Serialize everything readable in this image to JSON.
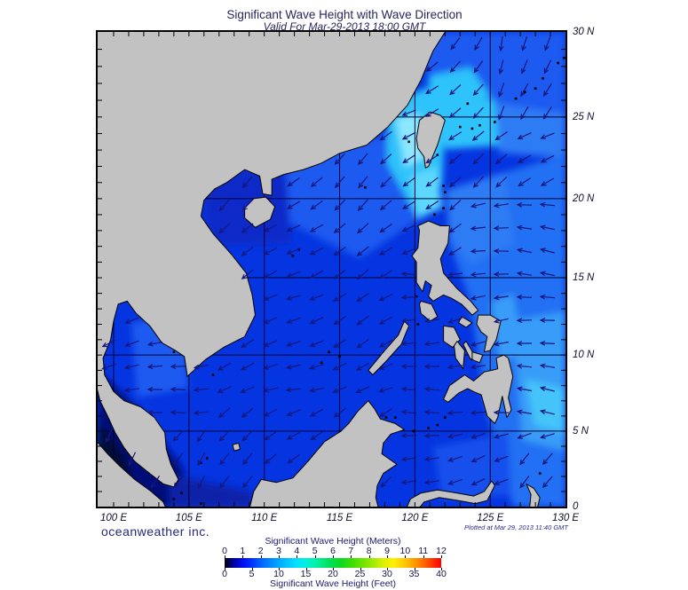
{
  "title": "Significant Wave Height with Wave Direction",
  "subtitle": "Valid For Mar-29-2013 18:00 GMT",
  "branding": "oceanweather inc.",
  "plotted_at": "Plotted at Mar 29, 2013 11:40 GMT",
  "axes": {
    "lon_labels": [
      "100 E",
      "105 E",
      "110 E",
      "115 E",
      "120 E",
      "125 E",
      "130 E"
    ],
    "lon_values": [
      100,
      105,
      110,
      115,
      120,
      125,
      130
    ],
    "lat_labels": [
      "30 N",
      "25 N",
      "20 N",
      "15 N",
      "10 N",
      "5 N",
      "0"
    ],
    "lat_values": [
      30,
      25,
      20,
      15,
      10,
      5,
      0
    ],
    "grid_lon": [
      100,
      105,
      110,
      115,
      120,
      125
    ],
    "grid_lat": [
      5,
      10,
      15,
      20,
      25
    ]
  },
  "legend": {
    "meters_label": "Significant Wave Height (Meters)",
    "feet_label": "Significant Wave Height (Feet)",
    "meters_ticks": [
      "0",
      "1",
      "2",
      "3",
      "4",
      "5",
      "6",
      "7",
      "8",
      "9",
      "10",
      "11",
      "12"
    ],
    "feet_ticks": [
      "0",
      "5",
      "10",
      "15",
      "20",
      "25",
      "30",
      "35",
      "40"
    ],
    "gradient": [
      [
        0,
        "#000000"
      ],
      [
        0.02,
        "#000050"
      ],
      [
        0.05,
        "#0000b8"
      ],
      [
        0.1,
        "#0018ff"
      ],
      [
        0.165,
        "#0060ff"
      ],
      [
        0.25,
        "#00a8ff"
      ],
      [
        0.33,
        "#00e0ff"
      ],
      [
        0.375,
        "#00f0e0"
      ],
      [
        0.42,
        "#00f0a8"
      ],
      [
        0.48,
        "#00e060"
      ],
      [
        0.54,
        "#10d820"
      ],
      [
        0.6,
        "#48e000"
      ],
      [
        0.67,
        "#90e800"
      ],
      [
        0.73,
        "#d8f000"
      ],
      [
        0.78,
        "#fff000"
      ],
      [
        0.84,
        "#ffc000"
      ],
      [
        0.9,
        "#ff8000"
      ],
      [
        0.95,
        "#ff4000"
      ],
      [
        1,
        "#ff0000"
      ]
    ]
  },
  "map": {
    "land_color": "#c2c2c2",
    "coast_color": "#000000",
    "grid_color": "#000030",
    "arrow_color": "#16167d",
    "ocean_palette": {
      "calm_dark": "#000a38",
      "low": "#001178",
      "south_low": "#0a23a8",
      "tonkin": "#0b2cc8",
      "base": "#0535e0",
      "celebes": "#1650ec",
      "moderate": "#1e5af0",
      "pacific": "#2470f3",
      "fresh": "#2e7bf4",
      "bright": "#389df8",
      "pac_cyan": "#45c4fa",
      "high_cyan": "#2fc3fa",
      "vivid_cyan": "#5cd8fd",
      "peak_cyan": "#8ce8ff"
    }
  }
}
